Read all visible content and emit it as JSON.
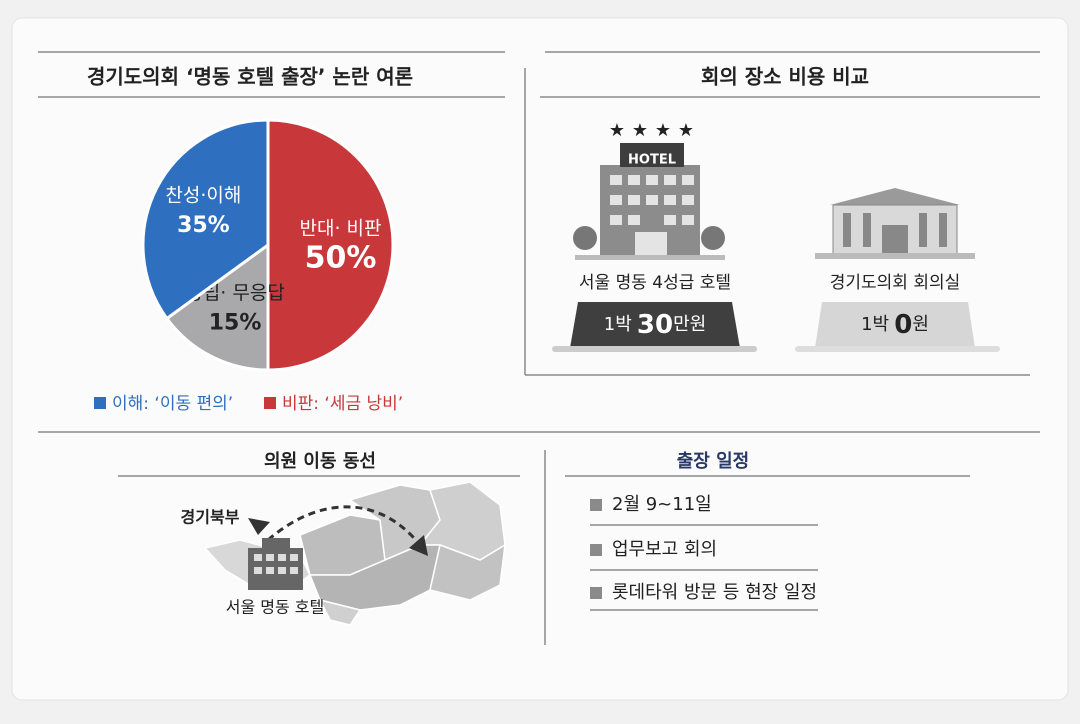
{
  "chart_data": {
    "type": "pie",
    "title": "경기도의회 ‘명동 호텔 출장’ 논란 여론",
    "categories": [
      "반대· 비판",
      "중립· 무응답",
      "찬성·이해"
    ],
    "values": [
      50,
      15,
      35
    ],
    "value_labels": [
      "50%",
      "15%",
      "35%"
    ],
    "colors": [
      "#c8383a",
      "#a9a9ab",
      "#2f6fbf"
    ]
  },
  "legend": [
    {
      "text": "이해: ‘이동 편의’",
      "color": "#2f6fbf"
    },
    {
      "text": "비판: ‘세금 낭비’",
      "color": "#c8383a"
    }
  ],
  "cost": {
    "title": "회의 장소 비용 비교",
    "hotel": {
      "sign": "HOTEL",
      "name": "서울 명동 4성급 호텔",
      "price_prefix": "1박",
      "price_amount": "30",
      "price_suffix": "만원"
    },
    "council": {
      "name": "경기도의회 회의실",
      "price_prefix": "1박",
      "price_amount": "0",
      "price_suffix": "원"
    }
  },
  "route": {
    "title": "의원 이동 동선",
    "origin": "경기북부",
    "destination": "서울 명동 호텔"
  },
  "schedule": {
    "title": "출장 일정",
    "items": [
      "2월 9~11일",
      "업무보고 회의",
      "롯데타워 방문 등 현장 일정"
    ]
  }
}
